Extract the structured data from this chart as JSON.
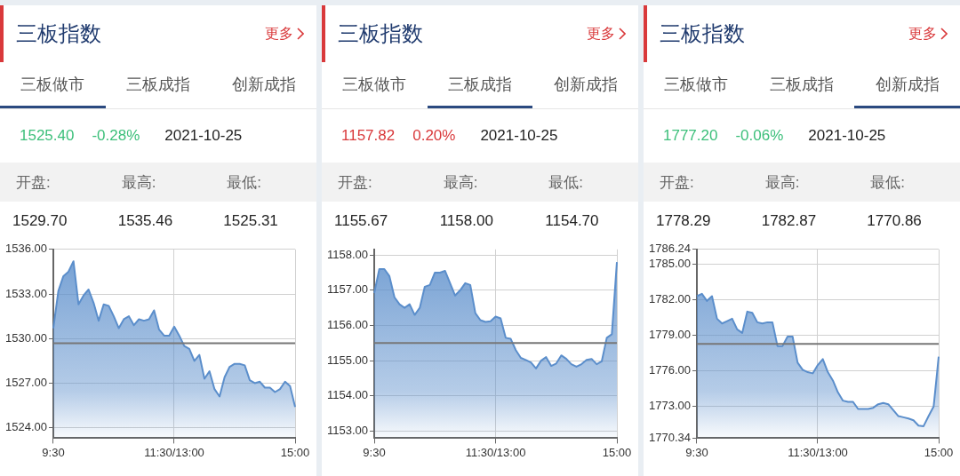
{
  "chart_data": [
    {
      "type": "area",
      "title": "三板指数",
      "annotations": [
        "更多",
        "三板做市",
        "三板成指",
        "创新成指",
        "1525.40",
        "-0.28%",
        "2021-10-25",
        "开盘:",
        "最高:",
        "最低:",
        "1529.70",
        "1535.46",
        "1525.31"
      ],
      "categories": [
        "9:30",
        null,
        null,
        null,
        null,
        null,
        null,
        null,
        null,
        null,
        null,
        null,
        null,
        null,
        null,
        null,
        null,
        null,
        null,
        null,
        null,
        null,
        null,
        null,
        "11:30/13:00",
        null,
        null,
        null,
        null,
        null,
        null,
        null,
        null,
        null,
        null,
        null,
        null,
        null,
        null,
        null,
        null,
        null,
        null,
        null,
        null,
        null,
        null,
        null,
        "15:00"
      ],
      "series": [
        {
          "color": "#5b8ecb",
          "values": [
            1530.7,
            1533.2,
            1534.2,
            1534.5,
            1535.2,
            1532.3,
            1532.9,
            1533.3,
            1532.4,
            1531.2,
            1532.3,
            1532.2,
            1531.5,
            1530.7,
            1531.3,
            1531.5,
            1530.9,
            1531.3,
            1531.2,
            1531.3,
            1531.9,
            1530.6,
            1530.2,
            1530.2,
            1530.8,
            1530.2,
            1529.5,
            1529.3,
            1528.5,
            1528.9,
            1527.3,
            1527.8,
            1526.6,
            1526.1,
            1527.4,
            1528.1,
            1528.3,
            1528.3,
            1528.2,
            1527.2,
            1527.0,
            1527.1,
            1526.7,
            1526.7,
            1526.4,
            1526.6,
            1527.1,
            1526.8,
            1525.4
          ]
        }
      ],
      "ylim": [
        1523.3,
        1536
      ],
      "yticks": [
        {
          "value": 1524,
          "label": "1524.00"
        },
        {
          "value": 1527,
          "label": "1527.00"
        },
        {
          "value": 1530,
          "label": "1530.00"
        },
        {
          "value": 1533,
          "label": "1533.00"
        },
        {
          "value": 1536,
          "label": "1536.00"
        }
      ],
      "grid": true,
      "marker": "none",
      "legend": false,
      "ref_lines": [
        {
          "axis": "y",
          "value": 1529.68,
          "color": "#777777"
        }
      ]
    },
    {
      "type": "area",
      "title": "三板指数",
      "annotations": [
        "更多",
        "三板做市",
        "三板成指",
        "创新成指",
        "1157.82",
        "0.20%",
        "2021-10-25",
        "开盘:",
        "最高:",
        "最低:",
        "1155.67",
        "1158.00",
        "1154.70"
      ],
      "categories": [
        "9:30",
        null,
        null,
        null,
        null,
        null,
        null,
        null,
        null,
        null,
        null,
        null,
        null,
        null,
        null,
        null,
        null,
        null,
        null,
        null,
        null,
        null,
        null,
        null,
        "11:30/13:00",
        null,
        null,
        null,
        null,
        null,
        null,
        null,
        null,
        null,
        null,
        null,
        null,
        null,
        null,
        null,
        null,
        null,
        null,
        null,
        null,
        null,
        null,
        null,
        "15:00"
      ],
      "series": [
        {
          "color": "#5b8ecb",
          "values": [
            1156.92,
            1157.6,
            1157.6,
            1157.4,
            1156.8,
            1156.6,
            1156.5,
            1156.6,
            1156.3,
            1156.5,
            1157.1,
            1157.15,
            1157.5,
            1157.5,
            1157.55,
            1157.2,
            1156.85,
            1157.0,
            1157.2,
            1157.15,
            1156.35,
            1156.15,
            1156.1,
            1156.12,
            1156.25,
            1156.2,
            1155.65,
            1155.62,
            1155.3,
            1155.08,
            1155.02,
            1154.95,
            1154.78,
            1155.0,
            1155.1,
            1154.85,
            1154.92,
            1155.15,
            1155.05,
            1154.9,
            1154.83,
            1154.9,
            1155.02,
            1155.05,
            1154.9,
            1154.98,
            1155.65,
            1155.75,
            1157.8
          ]
        }
      ],
      "ylim": [
        1152.8,
        1158.16
      ],
      "yticks": [
        {
          "value": 1153,
          "label": "1153.00"
        },
        {
          "value": 1154,
          "label": "1154.00"
        },
        {
          "value": 1155,
          "label": "1155.00"
        },
        {
          "value": 1156,
          "label": "1156.00"
        },
        {
          "value": 1157,
          "label": "1157.00"
        },
        {
          "value": 1158,
          "label": "1158.00"
        }
      ],
      "grid": true,
      "marker": "none",
      "legend": false,
      "ref_lines": [
        {
          "axis": "y",
          "value": 1155.5,
          "color": "#777777"
        }
      ]
    },
    {
      "type": "area",
      "title": "三板指数",
      "annotations": [
        "更多",
        "三板做市",
        "三板成指",
        "创新成指",
        "1777.20",
        "-0.06%",
        "2021-10-25",
        "开盘:",
        "最高:",
        "最低:",
        "1778.29",
        "1782.87",
        "1770.86"
      ],
      "categories": [
        "9:30",
        null,
        null,
        null,
        null,
        null,
        null,
        null,
        null,
        null,
        null,
        null,
        null,
        null,
        null,
        null,
        null,
        null,
        null,
        null,
        null,
        null,
        null,
        null,
        "11:30/13:00",
        null,
        null,
        null,
        null,
        null,
        null,
        null,
        null,
        null,
        null,
        null,
        null,
        null,
        null,
        null,
        null,
        null,
        null,
        null,
        null,
        null,
        null,
        null,
        "15:00"
      ],
      "series": [
        {
          "color": "#5b8ecb",
          "values": [
            1782.3,
            1782.5,
            1781.9,
            1782.3,
            1780.4,
            1780.0,
            1780.2,
            1780.4,
            1779.5,
            1779.2,
            1781.0,
            1780.9,
            1780.1,
            1780.0,
            1780.1,
            1780.1,
            1778.1,
            1778.1,
            1778.9,
            1778.9,
            1776.7,
            1776.1,
            1775.9,
            1775.8,
            1776.5,
            1777.0,
            1775.9,
            1775.2,
            1774.2,
            1773.5,
            1773.4,
            1773.4,
            1772.8,
            1772.8,
            1772.8,
            1772.9,
            1773.2,
            1773.3,
            1773.2,
            1772.7,
            1772.2,
            1772.1,
            1772.0,
            1771.85,
            1771.4,
            1771.35,
            1772.2,
            1773.0,
            1777.2
          ]
        }
      ],
      "ylim": [
        1770.34,
        1786.24
      ],
      "yticks": [
        1770.34,
        {
          "value": 1773,
          "label": "1773.00"
        },
        {
          "value": 1776,
          "label": "1776.00"
        },
        {
          "value": 1779,
          "label": "1779.00"
        },
        {
          "value": 1782,
          "label": "1782.00"
        },
        {
          "value": 1785,
          "label": "1785.00"
        },
        1786.24
      ],
      "grid": true,
      "marker": "none",
      "legend": false,
      "ref_lines": [
        {
          "axis": "y",
          "value": 1778.27,
          "color": "#777777"
        }
      ]
    }
  ]
}
